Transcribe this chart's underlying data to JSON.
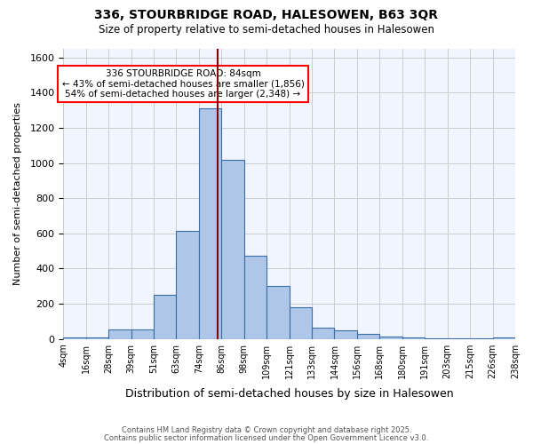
{
  "title1": "336, STOURBRIDGE ROAD, HALESOWEN, B63 3QR",
  "title2": "Size of property relative to semi-detached houses in Halesowen",
  "xlabel": "Distribution of semi-detached houses by size in Halesowen",
  "ylabel": "Number of semi-detached properties",
  "bin_labels": [
    "4sqm",
    "16sqm",
    "28sqm",
    "39sqm",
    "51sqm",
    "63sqm",
    "74sqm",
    "86sqm",
    "98sqm",
    "109sqm",
    "121sqm",
    "133sqm",
    "144sqm",
    "156sqm",
    "168sqm",
    "180sqm",
    "191sqm",
    "203sqm",
    "215sqm",
    "226sqm",
    "238sqm"
  ],
  "bar_heights": [
    10,
    10,
    55,
    55,
    250,
    615,
    1310,
    1020,
    475,
    300,
    180,
    65,
    50,
    30,
    12,
    10,
    5,
    5,
    5,
    10
  ],
  "bar_color": "#aec6e8",
  "bar_edge_color": "#3a6ea5",
  "annotation_text": "336 STOURBRIDGE ROAD: 84sqm\n← 43% of semi-detached houses are smaller (1,856)\n54% of semi-detached houses are larger (2,348) →",
  "ylim": [
    0,
    1650
  ],
  "yticks": [
    0,
    200,
    400,
    600,
    800,
    1000,
    1200,
    1400,
    1600
  ],
  "footer1": "Contains HM Land Registry data © Crown copyright and database right 2025.",
  "footer2": "Contains public sector information licensed under the Open Government Licence v3.0.",
  "bg_color": "#f0f5ff",
  "grid_color": "#cccccc"
}
